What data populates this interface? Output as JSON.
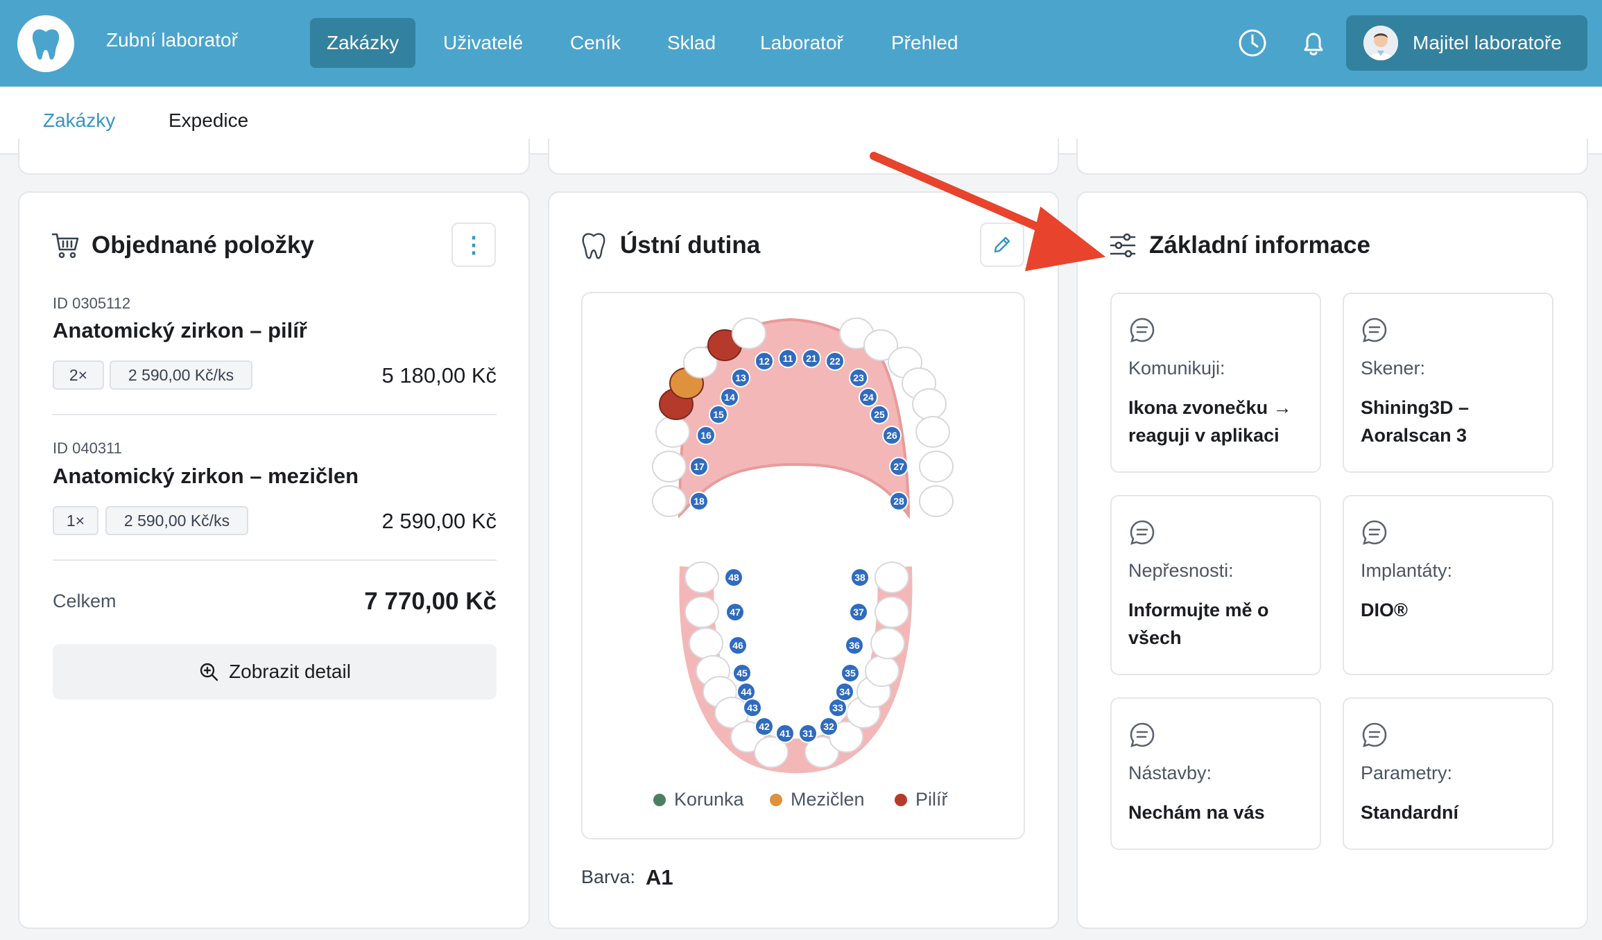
{
  "app": {
    "brand": "Zubní laboratoř",
    "nav": [
      "Zakázky",
      "Uživatelé",
      "Ceník",
      "Sklad",
      "Laboratoř",
      "Přehled"
    ],
    "active_nav": "Zakázky",
    "user": "Majitel laboratoře",
    "accent": "#4ba4cc"
  },
  "subnav": {
    "tabs": [
      "Zakázky",
      "Expedice"
    ],
    "active": "Zakázky"
  },
  "ordered": {
    "title": "Objednané položky",
    "items": [
      {
        "id": "ID 0305112",
        "name": "Anatomický zirkon – pilíř",
        "qty": "2×",
        "unit_price": "2 590,00 Kč/ks",
        "price": "5 180,00 Kč"
      },
      {
        "id": "ID 040311",
        "name": "Anatomický zirkon – mezičlen",
        "qty": "1×",
        "unit_price": "2 590,00 Kč/ks",
        "price": "2 590,00 Kč"
      }
    ],
    "total_label": "Celkem",
    "total_value": "7 770,00 Kč",
    "detail_button": "Zobrazit detail"
  },
  "mouth": {
    "title": "Ústní dutina",
    "upper_teeth": [
      "18",
      "17",
      "16",
      "15",
      "14",
      "13",
      "12",
      "11",
      "21",
      "22",
      "23",
      "24",
      "25",
      "26",
      "27",
      "28"
    ],
    "lower_teeth": [
      "48",
      "47",
      "46",
      "45",
      "44",
      "43",
      "42",
      "41",
      "31",
      "32",
      "33",
      "34",
      "35",
      "36",
      "37",
      "38"
    ],
    "marked_teeth": [
      {
        "tooth": "12",
        "type": "Pilíř"
      },
      {
        "tooth": "14",
        "type": "Mezičlen"
      },
      {
        "tooth": "15",
        "type": "Pilíř"
      }
    ],
    "legend": [
      {
        "label": "Korunka",
        "color": "#4a7f63"
      },
      {
        "label": "Mezičlen",
        "color": "#e0913e"
      },
      {
        "label": "Pilíř",
        "color": "#b63a2b"
      }
    ],
    "barva_label": "Barva:",
    "barva_value": "A1"
  },
  "basic": {
    "title": "Základní informace",
    "tiles": [
      {
        "label": "Komunikuji:",
        "value": "Ikona zvonečku → reaguji v aplikaci"
      },
      {
        "label": "Skener:",
        "value": "Shining3D – Aoralscan 3"
      },
      {
        "label": "Nepřesnosti:",
        "value": "Informujte mě o všech"
      },
      {
        "label": "Implantáty:",
        "value": "DIO®"
      },
      {
        "label": "Nástavby:",
        "value": "Nechám na vás"
      },
      {
        "label": "Parametry:",
        "value": "Standardní"
      }
    ]
  },
  "annotation_arrow_color": "#e8432c"
}
